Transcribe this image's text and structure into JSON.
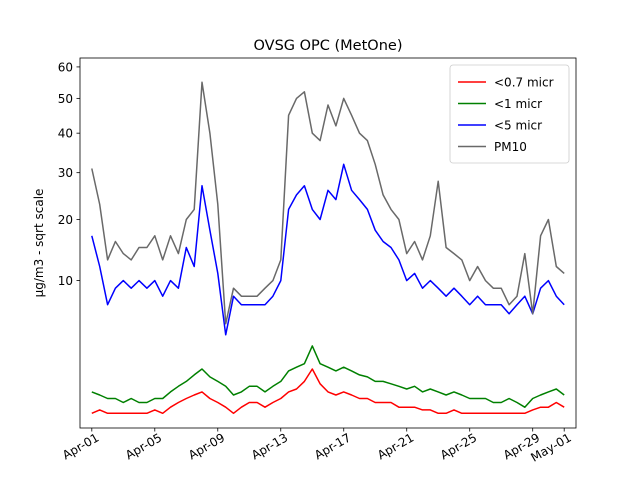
{
  "chart_data": {
    "type": "line",
    "title": "OVSG OPC (MetOne)",
    "xlabel": "",
    "ylabel": "µg/m3 - sqrt scale",
    "y_scale": "sqrt",
    "ylim": [
      0,
      63
    ],
    "y_ticks": [
      10,
      20,
      30,
      40,
      50,
      60
    ],
    "xlim": [
      "2021-03-31T06:00",
      "2021-05-01T18:00"
    ],
    "x_ticks": [
      {
        "date": "2021-04-01",
        "label": "Apr-01"
      },
      {
        "date": "2021-04-05",
        "label": "Apr-05"
      },
      {
        "date": "2021-04-09",
        "label": "Apr-09"
      },
      {
        "date": "2021-04-13",
        "label": "Apr-13"
      },
      {
        "date": "2021-04-17",
        "label": "Apr-17"
      },
      {
        "date": "2021-04-21",
        "label": "Apr-21"
      },
      {
        "date": "2021-04-25",
        "label": "Apr-25"
      },
      {
        "date": "2021-04-29",
        "label": "Apr-29"
      },
      {
        "date": "2021-05-01",
        "label": "May-01"
      }
    ],
    "x": [
      "2021-04-01",
      "2021-04-01T12:00",
      "2021-04-02",
      "2021-04-02T12:00",
      "2021-04-03",
      "2021-04-03T12:00",
      "2021-04-04",
      "2021-04-04T12:00",
      "2021-04-05",
      "2021-04-05T12:00",
      "2021-04-06",
      "2021-04-06T12:00",
      "2021-04-07",
      "2021-04-07T12:00",
      "2021-04-08",
      "2021-04-08T12:00",
      "2021-04-09",
      "2021-04-09T12:00",
      "2021-04-10",
      "2021-04-10T12:00",
      "2021-04-11",
      "2021-04-11T12:00",
      "2021-04-12",
      "2021-04-12T12:00",
      "2021-04-13",
      "2021-04-13T12:00",
      "2021-04-14",
      "2021-04-14T12:00",
      "2021-04-15",
      "2021-04-15T12:00",
      "2021-04-16",
      "2021-04-16T12:00",
      "2021-04-17",
      "2021-04-17T12:00",
      "2021-04-18",
      "2021-04-18T12:00",
      "2021-04-19",
      "2021-04-19T12:00",
      "2021-04-20",
      "2021-04-20T12:00",
      "2021-04-21",
      "2021-04-21T12:00",
      "2021-04-22",
      "2021-04-22T12:00",
      "2021-04-23",
      "2021-04-23T12:00",
      "2021-04-24",
      "2021-04-24T12:00",
      "2021-04-25",
      "2021-04-25T12:00",
      "2021-04-26",
      "2021-04-26T12:00",
      "2021-04-27",
      "2021-04-27T12:00",
      "2021-04-28",
      "2021-04-28T12:00",
      "2021-04-29",
      "2021-04-29T12:00",
      "2021-04-30",
      "2021-04-30T12:00",
      "2021-05-01"
    ],
    "series": [
      {
        "name": "<0.7 micr",
        "color": "#ff0000",
        "values": [
          0.1,
          0.15,
          0.1,
          0.1,
          0.1,
          0.1,
          0.1,
          0.1,
          0.15,
          0.1,
          0.2,
          0.3,
          0.4,
          0.5,
          0.6,
          0.4,
          0.3,
          0.2,
          0.1,
          0.2,
          0.3,
          0.3,
          0.2,
          0.3,
          0.4,
          0.6,
          0.7,
          1.0,
          1.6,
          0.9,
          0.6,
          0.5,
          0.6,
          0.5,
          0.4,
          0.4,
          0.3,
          0.3,
          0.3,
          0.2,
          0.2,
          0.2,
          0.15,
          0.15,
          0.1,
          0.1,
          0.15,
          0.1,
          0.1,
          0.1,
          0.1,
          0.1,
          0.1,
          0.1,
          0.1,
          0.1,
          0.15,
          0.2,
          0.2,
          0.3,
          0.2
        ]
      },
      {
        "name": "<1 micr",
        "color": "#008000",
        "values": [
          0.6,
          0.5,
          0.4,
          0.4,
          0.3,
          0.4,
          0.3,
          0.3,
          0.4,
          0.4,
          0.6,
          0.8,
          1.0,
          1.3,
          1.6,
          1.2,
          1.0,
          0.8,
          0.5,
          0.6,
          0.8,
          0.8,
          0.6,
          0.8,
          1.0,
          1.5,
          1.7,
          1.9,
          3.1,
          1.9,
          1.7,
          1.5,
          1.7,
          1.5,
          1.3,
          1.2,
          1.0,
          1.0,
          0.9,
          0.8,
          0.7,
          0.8,
          0.6,
          0.7,
          0.6,
          0.5,
          0.6,
          0.5,
          0.4,
          0.4,
          0.4,
          0.3,
          0.3,
          0.4,
          0.3,
          0.2,
          0.4,
          0.5,
          0.6,
          0.7,
          0.5
        ]
      },
      {
        "name": "<5 micr",
        "color": "#0000ff",
        "values": [
          17,
          12,
          7,
          9,
          10,
          9,
          10,
          9,
          10,
          8,
          10,
          9,
          15,
          12,
          27,
          18,
          11,
          4,
          8,
          7,
          7,
          7,
          7,
          8,
          10,
          22,
          25,
          27,
          22,
          20,
          26,
          24,
          32,
          26,
          24,
          22,
          18,
          16,
          15,
          13,
          10,
          11,
          9,
          10,
          9,
          8,
          9,
          8,
          7,
          8,
          7,
          7,
          7,
          6,
          7,
          8,
          6,
          9,
          10,
          8,
          7
        ]
      },
      {
        "name": "PM10",
        "color": "#696969",
        "values": [
          31,
          23,
          13,
          16,
          14,
          13,
          15,
          15,
          17,
          13,
          17,
          14,
          20,
          22,
          55,
          40,
          23,
          5,
          9,
          8,
          8,
          8,
          9,
          10,
          13,
          45,
          50,
          52,
          40,
          38,
          48,
          42,
          50,
          45,
          40,
          38,
          32,
          25,
          22,
          20,
          14,
          16,
          13,
          17,
          28,
          15,
          14,
          13,
          10,
          12,
          10,
          9,
          9,
          7,
          8,
          14,
          6,
          17,
          20,
          12,
          11
        ]
      }
    ],
    "legend": {
      "placement": "top-right"
    },
    "grid": false
  }
}
